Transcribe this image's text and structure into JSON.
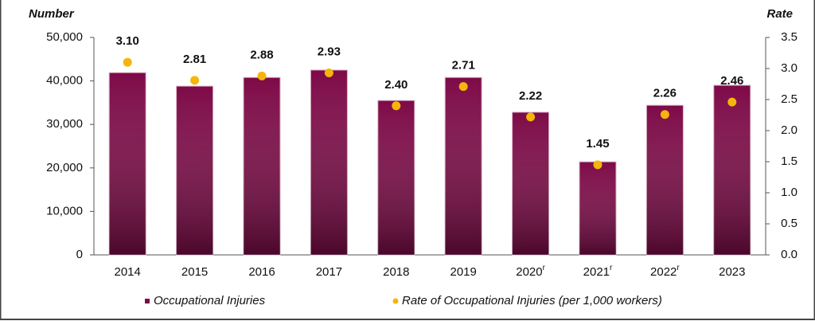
{
  "chart_data": {
    "type": "bar",
    "y_title": "Number",
    "y2_title": "Rate",
    "categories": [
      "2014",
      "2015",
      "2016",
      "2017",
      "2018",
      "2019",
      "2020",
      "2021",
      "2022",
      "2023"
    ],
    "category_notes": [
      null,
      null,
      null,
      null,
      null,
      null,
      "r",
      "r",
      "r",
      null
    ],
    "series": [
      {
        "name": "Occupational Injuries",
        "type": "bar",
        "color": "#7d0a47",
        "values": [
          41900,
          38800,
          40800,
          42500,
          35500,
          40800,
          32800,
          21400,
          34400,
          39000
        ]
      },
      {
        "name": "Rate of Occupational Injuries (per 1,000 workers)",
        "type": "scatter",
        "axis": "y2",
        "color": "#f5b50a",
        "values": [
          3.1,
          2.81,
          2.88,
          2.93,
          2.4,
          2.71,
          2.22,
          1.45,
          2.26,
          2.46
        ],
        "value_labels": [
          "3.10",
          "2.81",
          "2.88",
          "2.93",
          "2.40",
          "2.71",
          "2.22",
          "1.45",
          "2.26",
          "2.46"
        ]
      }
    ],
    "ylim": [
      0,
      50000
    ],
    "yticks": [
      0,
      {
        "value": 10000,
        "label": "10,000"
      },
      {
        "value": 20000,
        "label": "20,000"
      },
      {
        "value": 30000,
        "label": "30,000"
      },
      {
        "value": 40000,
        "label": "40,000"
      },
      {
        "value": 50000,
        "label": "50,000"
      }
    ],
    "y2lim": [
      0,
      3.5
    ],
    "y2ticks": [
      {
        "value": 0,
        "label": "0.0"
      },
      {
        "value": 0.5,
        "label": "0.5"
      },
      {
        "value": 1,
        "label": "1.0"
      },
      {
        "value": 1.5,
        "label": "1.5"
      },
      {
        "value": 2,
        "label": "2.0"
      },
      {
        "value": 2.5,
        "label": "2.5"
      },
      {
        "value": 3,
        "label": "3.0"
      },
      {
        "value": 3.5,
        "label": "3.5"
      }
    ],
    "grid": false
  }
}
